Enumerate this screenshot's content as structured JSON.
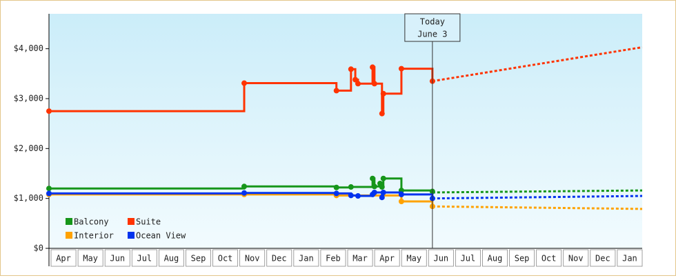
{
  "chart_data": {
    "type": "line",
    "categories": [
      "Apr",
      "May",
      "Jun",
      "Jul",
      "Aug",
      "Sep",
      "Oct",
      "Nov",
      "Dec",
      "Jan",
      "Feb",
      "Mar",
      "Apr",
      "May",
      "Jun",
      "Jul",
      "Aug",
      "Sep",
      "Oct",
      "Nov",
      "Dec",
      "Jan"
    ],
    "xlim": [
      0,
      22
    ],
    "ylim": [
      0,
      4700
    ],
    "yticks": [
      {
        "value": 0,
        "label": "$0"
      },
      {
        "value": 1000,
        "label": "$1,000"
      },
      {
        "value": 2000,
        "label": "$2,000"
      },
      {
        "value": 3000,
        "label": "$3,000"
      },
      {
        "value": 4000,
        "label": "$4,000"
      }
    ],
    "step": true,
    "legend": "lower left",
    "annotation": {
      "lines": [
        "Today",
        "June 3"
      ],
      "x": 14.22
    },
    "series": [
      {
        "name": "Balcony",
        "color": "#16961a",
        "x": [
          0,
          7.24,
          10.66,
          11.2,
          12.0,
          12.07,
          12.28,
          12.35,
          12.4,
          13.07,
          14.22
        ],
        "values": [
          1200,
          1240,
          1220,
          1230,
          1400,
          1240,
          1300,
          1230,
          1400,
          1160,
          1140
        ],
        "forecast": {
          "x": [
            14.22,
            22
          ],
          "values": [
            1120,
            1160
          ]
        }
      },
      {
        "name": "Suite",
        "color": "#ff3300",
        "x": [
          0,
          7.24,
          10.66,
          11.2,
          11.36,
          11.46,
          12.0,
          12.07,
          12.35,
          12.4,
          13.07,
          14.22
        ],
        "values": [
          2750,
          3310,
          3160,
          3590,
          3380,
          3300,
          3630,
          3300,
          2700,
          3100,
          3600,
          3350
        ],
        "forecast": {
          "x": [
            14.22,
            22
          ],
          "values": [
            3350,
            4030
          ]
        }
      },
      {
        "name": "Interior",
        "color": "#ffa200",
        "x": [
          0,
          7.24,
          10.66,
          13.07,
          14.22
        ],
        "values": [
          1080,
          1080,
          1060,
          940,
          840
        ],
        "forecast": {
          "x": [
            14.22,
            22
          ],
          "values": [
            840,
            790
          ]
        }
      },
      {
        "name": "Ocean View",
        "color": "#0033ee",
        "x": [
          0,
          7.24,
          10.66,
          11.2,
          11.46,
          12.0,
          12.07,
          12.35,
          12.4,
          13.07,
          14.22
        ],
        "values": [
          1100,
          1110,
          1100,
          1060,
          1050,
          1080,
          1120,
          1020,
          1120,
          1080,
          1000
        ],
        "forecast": {
          "x": [
            14.22,
            22
          ],
          "values": [
            1000,
            1050
          ]
        }
      }
    ]
  }
}
